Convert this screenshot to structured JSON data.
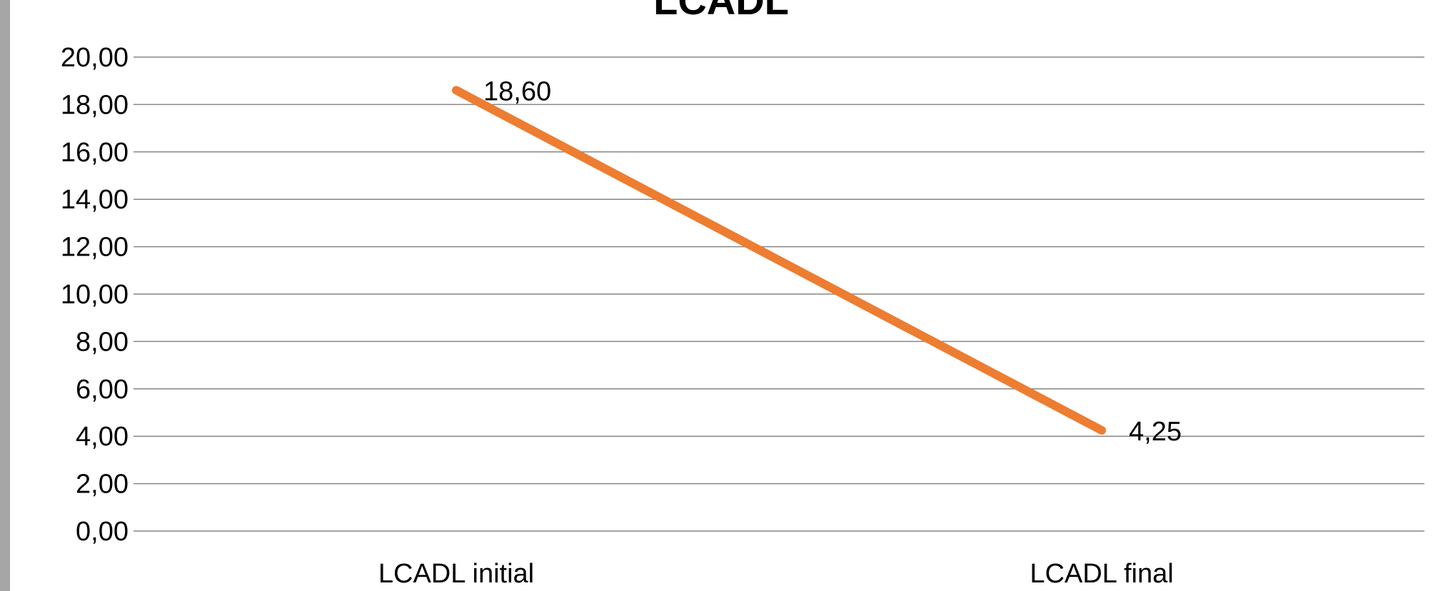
{
  "chart_data": {
    "type": "line",
    "title": "LCADL",
    "categories": [
      "LCADL initial",
      "LCADL final"
    ],
    "series": [
      {
        "values": [
          18.6,
          4.25
        ],
        "color": "#ed7d31"
      }
    ],
    "data_labels": [
      "18,60",
      "4,25"
    ],
    "y_ticks": [
      "0,00",
      "2,00",
      "4,00",
      "6,00",
      "8,00",
      "10,00",
      "12,00",
      "14,00",
      "16,00",
      "18,00",
      "20,00"
    ],
    "ylim": [
      0,
      20
    ],
    "grid": true,
    "gridline_color": "#868686"
  }
}
